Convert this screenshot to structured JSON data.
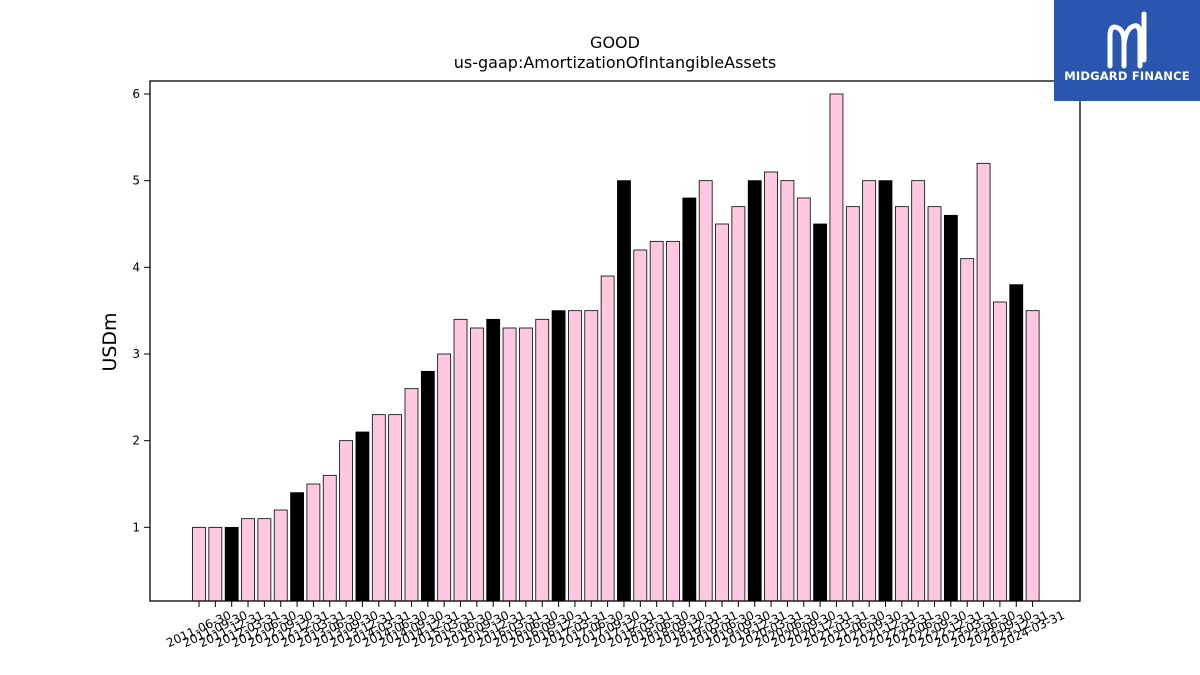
{
  "logo": {
    "text": "MIDGARD FINANCE",
    "icon": "midgard-m-icon",
    "background": "#2a56b0"
  },
  "colors": {
    "bar_pink": "#ffc8e0",
    "bar_black": "#000000",
    "bar_edge": "#000000"
  },
  "chart_data": {
    "type": "bar",
    "title": "GOOD",
    "subtitle": "us-gaap:AmortizationOfIntangibleAssets",
    "xlabel": "",
    "ylabel": "USDm",
    "ylim": [
      0.15,
      6.15
    ],
    "yticks": [
      1,
      2,
      3,
      4,
      5,
      6
    ],
    "grid": false,
    "categories": [
      "2011-06-30",
      "2011-09-30",
      "2011-12-31",
      "2012-03-31",
      "2012-06-30",
      "2012-09-30",
      "2012-12-31",
      "2013-03-31",
      "2013-06-30",
      "2013-09-30",
      "2013-12-31",
      "2014-03-31",
      "2014-06-30",
      "2014-09-30",
      "2014-12-31",
      "2015-03-31",
      "2015-06-30",
      "2015-09-30",
      "2015-12-31",
      "2016-03-31",
      "2016-06-30",
      "2016-09-30",
      "2016-12-31",
      "2017-03-31",
      "2017-06-30",
      "2017-09-30",
      "2017-12-31",
      "2018-03-31",
      "2018-06-30",
      "2018-09-30",
      "2018-12-31",
      "2019-03-31",
      "2019-06-30",
      "2019-09-30",
      "2019-12-31",
      "2020-03-31",
      "2020-06-30",
      "2020-09-30",
      "2020-12-31",
      "2021-03-31",
      "2021-06-30",
      "2021-09-30",
      "2021-12-31",
      "2022-03-31",
      "2022-06-30",
      "2022-09-30",
      "2022-12-31",
      "2023-03-31",
      "2023-06-30",
      "2023-09-30",
      "2023-12-31",
      "2024-03-31"
    ],
    "values": [
      1.0,
      1.0,
      1.0,
      1.1,
      1.1,
      1.2,
      1.4,
      1.5,
      1.6,
      2.0,
      2.1,
      2.3,
      2.3,
      2.6,
      2.8,
      3.0,
      3.4,
      3.3,
      3.4,
      3.3,
      3.3,
      3.4,
      3.5,
      3.5,
      3.5,
      3.9,
      5.0,
      4.2,
      4.3,
      4.3,
      4.8,
      5.0,
      4.5,
      4.7,
      5.0,
      5.1,
      5.0,
      4.8,
      4.5,
      6.0,
      4.7,
      5.0,
      5.0,
      4.7,
      5.0,
      4.7,
      4.6,
      4.1,
      5.2,
      3.6,
      3.8,
      3.5
    ],
    "bar_colors": [
      "pink",
      "pink",
      "black",
      "pink",
      "pink",
      "pink",
      "black",
      "pink",
      "pink",
      "pink",
      "black",
      "pink",
      "pink",
      "pink",
      "black",
      "pink",
      "pink",
      "pink",
      "black",
      "pink",
      "pink",
      "pink",
      "black",
      "pink",
      "pink",
      "pink",
      "black",
      "pink",
      "pink",
      "pink",
      "black",
      "pink",
      "pink",
      "pink",
      "black",
      "pink",
      "pink",
      "pink",
      "black",
      "pink",
      "pink",
      "pink",
      "black",
      "pink",
      "pink",
      "pink",
      "black",
      "pink",
      "pink",
      "pink",
      "black",
      "pink"
    ]
  }
}
